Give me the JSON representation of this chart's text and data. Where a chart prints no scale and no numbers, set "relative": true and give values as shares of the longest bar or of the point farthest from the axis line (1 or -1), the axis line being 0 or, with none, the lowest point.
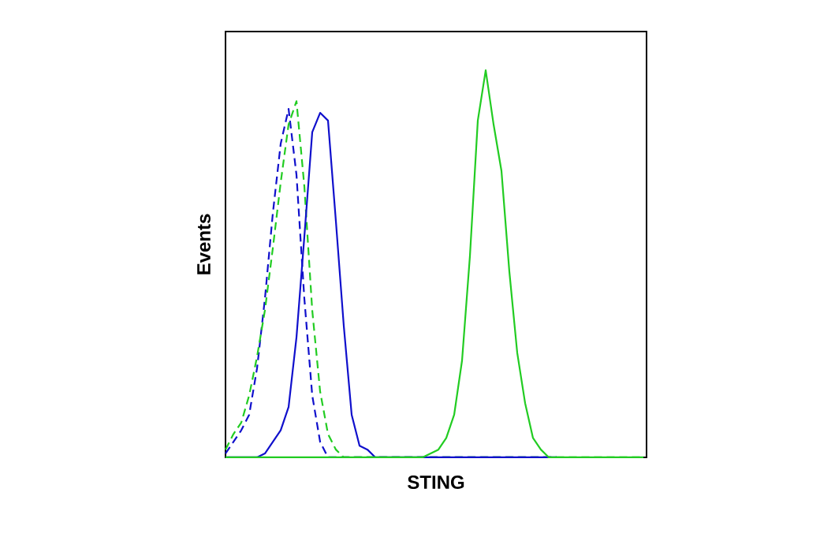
{
  "chart_data": {
    "type": "line",
    "relative": true,
    "tick_labels": false,
    "xlabel": "STING",
    "ylabel": "Events",
    "categories": [
      null,
      null,
      null,
      null,
      null,
      null,
      null,
      null,
      null,
      null,
      null,
      null,
      null,
      null,
      null,
      null,
      null,
      null,
      null,
      null,
      null,
      null,
      null,
      null,
      null,
      null,
      null,
      null,
      null,
      null,
      null,
      null,
      null,
      null,
      null,
      null,
      null,
      null,
      null,
      null,
      null,
      null,
      null,
      null,
      null,
      null,
      null,
      null,
      null,
      null,
      null,
      null,
      null,
      null
    ],
    "series": [
      {
        "color": "#1010cc",
        "line_style": "dashed",
        "values": [
          0.01,
          0.04,
          0.07,
          0.11,
          0.23,
          0.41,
          0.63,
          0.81,
          0.9,
          0.73,
          0.41,
          0.16,
          0.04,
          0,
          0,
          0,
          0,
          0,
          0,
          0,
          0,
          0,
          0,
          0,
          0,
          0,
          0,
          0,
          0,
          0,
          0,
          0,
          0,
          0,
          0,
          0,
          0,
          0,
          0,
          0,
          0,
          0,
          0,
          null,
          null,
          null,
          null,
          null,
          null,
          null,
          null,
          null,
          null,
          null
        ]
      },
      {
        "color": "#22cc22",
        "line_style": "dashed",
        "values": [
          0.02,
          0.06,
          0.09,
          0.16,
          0.26,
          0.38,
          0.54,
          0.71,
          0.86,
          0.92,
          0.7,
          0.38,
          0.17,
          0.06,
          0.02,
          0,
          0,
          0,
          0,
          0,
          0,
          0,
          0,
          0,
          0,
          0,
          0,
          0,
          0,
          0,
          0,
          0,
          0,
          0,
          0,
          0,
          0,
          0,
          0,
          0,
          0,
          0,
          0,
          0,
          0,
          0,
          0,
          0,
          0,
          0,
          0,
          0,
          0,
          0
        ]
      },
      {
        "color": "#1010cc",
        "line_style": "solid",
        "values": [
          0,
          0,
          0,
          0,
          0,
          0.01,
          0.04,
          0.07,
          0.13,
          0.31,
          0.57,
          0.84,
          0.89,
          0.87,
          0.61,
          0.34,
          0.11,
          0.03,
          0.02,
          0,
          0,
          0,
          0,
          0,
          0,
          0,
          0,
          0,
          0,
          0,
          0,
          0,
          0,
          0,
          0,
          0,
          0,
          0,
          0,
          0,
          0,
          0,
          0,
          null,
          null,
          null,
          null,
          null,
          null,
          null,
          null,
          null,
          null,
          null
        ]
      },
      {
        "color": "#22cc22",
        "line_style": "solid",
        "values": [
          0,
          0,
          0,
          0,
          0,
          0,
          0,
          0,
          0,
          0,
          0,
          0,
          0,
          0,
          0,
          0,
          0,
          0,
          0,
          0,
          0,
          0,
          0,
          0,
          0,
          0,
          0.01,
          0.02,
          0.05,
          0.11,
          0.25,
          0.52,
          0.87,
          1.0,
          0.86,
          0.74,
          0.48,
          0.27,
          0.14,
          0.05,
          0.02,
          0,
          0,
          0,
          0,
          0,
          0,
          0,
          0,
          0,
          0,
          0,
          0,
          0
        ]
      }
    ]
  }
}
